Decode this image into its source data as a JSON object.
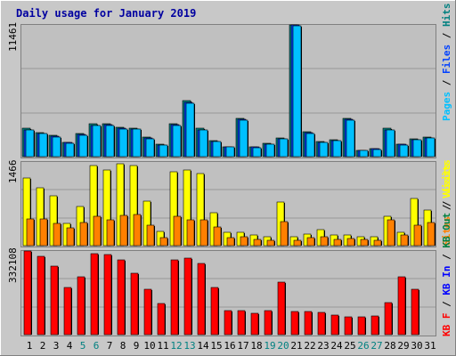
{
  "title": "Daily usage for January 2019",
  "colors": {
    "background": "#c8c8c8",
    "plot": "#c0c0c0",
    "title": "#0000a0",
    "pages": "#00c0ff",
    "files": "#0040ff",
    "hits": "#008080",
    "visits": "#ffff00",
    "sites": "#ff8000",
    "kb_out": "#008040",
    "kb_in": "#0000ff",
    "kb_f": "#ff0000",
    "weekend_label": "#008080",
    "weekday_label": "#000000"
  },
  "chart_data": [
    {
      "type": "bar",
      "panel": "hits",
      "ymax_label": "11461",
      "ylim": [
        0,
        11461
      ],
      "legend": [
        "Pages",
        "Files",
        "Hits"
      ],
      "categories": [
        "1",
        "2",
        "3",
        "4",
        "5",
        "6",
        "7",
        "8",
        "9",
        "10",
        "11",
        "12",
        "13",
        "14",
        "15",
        "16",
        "17",
        "18",
        "19",
        "20",
        "21",
        "22",
        "23",
        "24",
        "25",
        "26",
        "27",
        "28",
        "29",
        "30",
        "31"
      ],
      "weekend_days": [
        "5",
        "6",
        "12",
        "13",
        "19",
        "20",
        "26",
        "27"
      ],
      "series": [
        {
          "name": "Hits",
          "values": [
            2450,
            2120,
            1860,
            1270,
            2010,
            2830,
            2880,
            2570,
            2500,
            1680,
            1060,
            2870,
            4880,
            2450,
            1380,
            880,
            3360,
            860,
            1170,
            1620,
            11461,
            2150,
            1310,
            1480,
            3360,
            550,
            690,
            2450,
            1110,
            1550,
            1700
          ]
        },
        {
          "name": "Files",
          "values": [
            2350,
            2040,
            1780,
            1210,
            1930,
            2730,
            2790,
            2480,
            2420,
            1610,
            1010,
            2780,
            4720,
            2360,
            1320,
            840,
            3250,
            820,
            1120,
            1560,
            11461,
            2070,
            1260,
            1420,
            3250,
            520,
            660,
            2360,
            1060,
            1490,
            1640
          ]
        },
        {
          "name": "Pages",
          "values": [
            2300,
            2000,
            1740,
            1180,
            1890,
            2680,
            2740,
            2430,
            2370,
            1580,
            990,
            2730,
            4640,
            2310,
            1290,
            820,
            3190,
            800,
            1100,
            1530,
            11360,
            2030,
            1230,
            1390,
            3190,
            510,
            640,
            2310,
            1040,
            1460,
            1610
          ]
        }
      ]
    },
    {
      "type": "bar",
      "panel": "visits",
      "ymax_label": "1466",
      "ylim": [
        0,
        1466
      ],
      "legend": [
        "Sites",
        "Visits"
      ],
      "categories": [
        "1",
        "2",
        "3",
        "4",
        "5",
        "6",
        "7",
        "8",
        "9",
        "10",
        "11",
        "12",
        "13",
        "14",
        "15",
        "16",
        "17",
        "18",
        "19",
        "20",
        "21",
        "22",
        "23",
        "24",
        "25",
        "26",
        "27",
        "28",
        "29",
        "30",
        "31"
      ],
      "series": [
        {
          "name": "Visits",
          "values": [
            1180,
            1010,
            880,
            390,
            680,
            1400,
            1330,
            1430,
            1400,
            780,
            250,
            1300,
            1320,
            1260,
            580,
            230,
            230,
            190,
            160,
            760,
            150,
            210,
            280,
            180,
            180,
            160,
            160,
            520,
            240,
            820,
            630
          ]
        },
        {
          "name": "Sites",
          "values": [
            470,
            470,
            390,
            310,
            400,
            510,
            460,
            530,
            540,
            360,
            140,
            510,
            460,
            460,
            330,
            140,
            150,
            110,
            100,
            420,
            90,
            140,
            160,
            110,
            130,
            110,
            100,
            450,
            190,
            360,
            400
          ]
        }
      ]
    },
    {
      "type": "bar",
      "panel": "kbytes",
      "ymax_label": "332108",
      "ylim": [
        0,
        332108
      ],
      "legend": [
        "KB F",
        "KB In",
        "KB Out",
        "Visits"
      ],
      "categories": [
        "1",
        "2",
        "3",
        "4",
        "5",
        "6",
        "7",
        "8",
        "9",
        "10",
        "11",
        "12",
        "13",
        "14",
        "15",
        "16",
        "17",
        "18",
        "19",
        "20",
        "21",
        "22",
        "23",
        "24",
        "25",
        "26",
        "27",
        "28",
        "29",
        "30",
        "31"
      ],
      "series": [
        {
          "name": "KB F",
          "values": [
            332108,
            311000,
            271000,
            189000,
            230000,
            323000,
            318000,
            298000,
            244000,
            180000,
            124000,
            297000,
            304000,
            282000,
            186000,
            95000,
            95000,
            84000,
            94000,
            209000,
            93000,
            93000,
            89000,
            76000,
            70000,
            71000,
            75000,
            128000,
            231000,
            179000,
            0
          ]
        }
      ]
    }
  ]
}
